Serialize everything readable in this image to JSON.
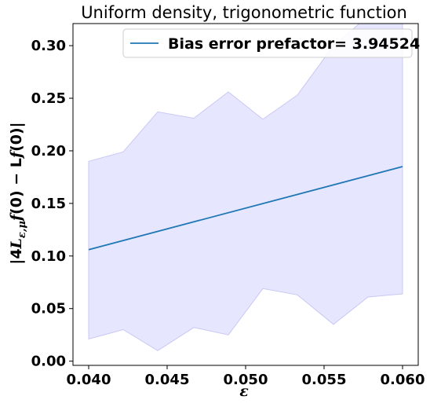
{
  "chart_data": {
    "type": "line",
    "title": "Uniform density, trigonometric function",
    "xlabel": "ε",
    "ylabel": "|4L_{ε,μ}f(0) − Lf(0)|",
    "xlim": [
      0.039,
      0.061
    ],
    "ylim": [
      -0.004,
      0.321
    ],
    "xticks": [
      0.04,
      0.045,
      0.05,
      0.055,
      0.06
    ],
    "xtick_labels": [
      "0.040",
      "0.045",
      "0.050",
      "0.055",
      "0.060"
    ],
    "yticks": [
      0.0,
      0.05,
      0.1,
      0.15,
      0.2,
      0.25,
      0.3
    ],
    "ytick_labels": [
      "0.00",
      "0.05",
      "0.10",
      "0.15",
      "0.20",
      "0.25",
      "0.30"
    ],
    "grid": false,
    "legend_position": "top-right",
    "series": [
      {
        "name": "Bias error prefactor= 3.94524",
        "color": "#1f77b4",
        "x": [
          0.04,
          0.06
        ],
        "y": [
          0.106,
          0.185
        ]
      }
    ],
    "band": {
      "color": "#e6e6ff",
      "edge_color": "#c8c8f5",
      "x": [
        0.04,
        0.0422,
        0.0444,
        0.0467,
        0.0489,
        0.0511,
        0.0533,
        0.0556,
        0.0578,
        0.06
      ],
      "upper": [
        0.19,
        0.199,
        0.237,
        0.231,
        0.256,
        0.23,
        0.253,
        0.3,
        0.328,
        0.33
      ],
      "lower": [
        0.021,
        0.03,
        0.01,
        0.032,
        0.025,
        0.069,
        0.063,
        0.035,
        0.061,
        0.064
      ]
    }
  }
}
